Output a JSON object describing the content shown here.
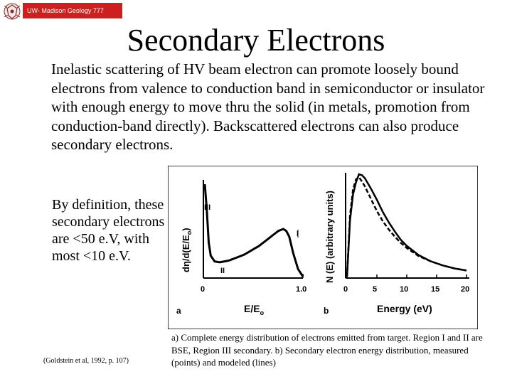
{
  "header": {
    "badge_text": "UW- Madison Geology 777",
    "logo_icon": "crest-icon",
    "badge_color": "#cc1f1f"
  },
  "slide": {
    "title": "Secondary Electrons",
    "intro": "Inelastic scattering of HV beam electron can promote loosely bound electrons from valence to conduction band in semiconductor or insulator with enough energy to move thru the solid (in metals, promotion from conduction-band directly). Backscattered electrons can also produce secondary electrons.",
    "definition": "By definition, these secondary electrons are <50 e.V, with most <10 e.V.",
    "citation": "(Goldstein et al, 1992, p. 107)",
    "caption": "a) Complete energy distribution of electrons emitted from target. Region I and II are BSE, Region III secondary. b) Secondary electron energy distribution, measured (points) and modeled (lines)"
  },
  "figure": {
    "panel_a": {
      "label": "a",
      "ylabel": "dη/d(E/E",
      "ylabel_sub": "o",
      "ylabel_close": ")",
      "xlabel": "E/E",
      "xlabel_sub": "o",
      "ticks": [
        "0",
        "1.0"
      ],
      "regions": [
        "III",
        "II",
        "I"
      ]
    },
    "panel_b": {
      "label": "b",
      "ylabel": "N (E) (arbitrary units)",
      "xlabel": "Energy (eV)",
      "ticks": [
        "0",
        "5",
        "10",
        "15",
        "20"
      ]
    }
  },
  "chart_data": [
    {
      "type": "line",
      "title": "",
      "xlabel": "E/Eo",
      "ylabel": "dη/d(E/Eo)",
      "xlim": [
        0,
        1.0
      ],
      "ylim": [
        0,
        1.0
      ],
      "series": [
        {
          "x": [
            0.0,
            0.02,
            0.04,
            0.06,
            0.1,
            0.15,
            0.2,
            0.25,
            0.3,
            0.35,
            0.4,
            0.45,
            0.5,
            0.55,
            0.6,
            0.65,
            0.7,
            0.75,
            0.8,
            0.83,
            0.86,
            0.9,
            0.95,
            1.0
          ],
          "y": [
            0.97,
            0.7,
            0.36,
            0.22,
            0.16,
            0.15,
            0.16,
            0.17,
            0.19,
            0.21,
            0.23,
            0.26,
            0.29,
            0.32,
            0.36,
            0.4,
            0.44,
            0.48,
            0.5,
            0.48,
            0.42,
            0.25,
            0.08,
            0.0
          ]
        }
      ],
      "annotations": [
        "III",
        "II",
        "I"
      ]
    },
    {
      "type": "line",
      "title": "",
      "xlabel": "Energy (eV)",
      "ylabel": "N (E) (arbitrary units)",
      "xlim": [
        0,
        20
      ],
      "ylim": [
        0,
        1.0
      ],
      "series": [
        {
          "x": [
            0,
            0.5,
            1,
            1.5,
            2,
            2.5,
            3,
            3.5,
            4,
            5,
            6,
            7,
            8,
            9,
            10,
            12,
            14,
            16,
            18,
            20
          ],
          "y": [
            0.0,
            0.6,
            0.85,
            0.95,
            0.97,
            0.93,
            0.88,
            0.82,
            0.76,
            0.64,
            0.54,
            0.46,
            0.39,
            0.33,
            0.28,
            0.2,
            0.15,
            0.11,
            0.08,
            0.06
          ]
        },
        {
          "x": [
            0,
            0.5,
            1,
            1.5,
            2,
            2.5,
            3,
            3.5,
            4,
            5,
            6,
            7,
            8,
            9,
            10,
            12,
            14,
            16,
            18,
            20
          ],
          "y": [
            0.0,
            0.55,
            0.8,
            0.92,
            1.0,
            0.99,
            0.96,
            0.91,
            0.86,
            0.75,
            0.63,
            0.53,
            0.44,
            0.36,
            0.3,
            0.21,
            0.15,
            0.11,
            0.08,
            0.06
          ]
        }
      ]
    }
  ]
}
